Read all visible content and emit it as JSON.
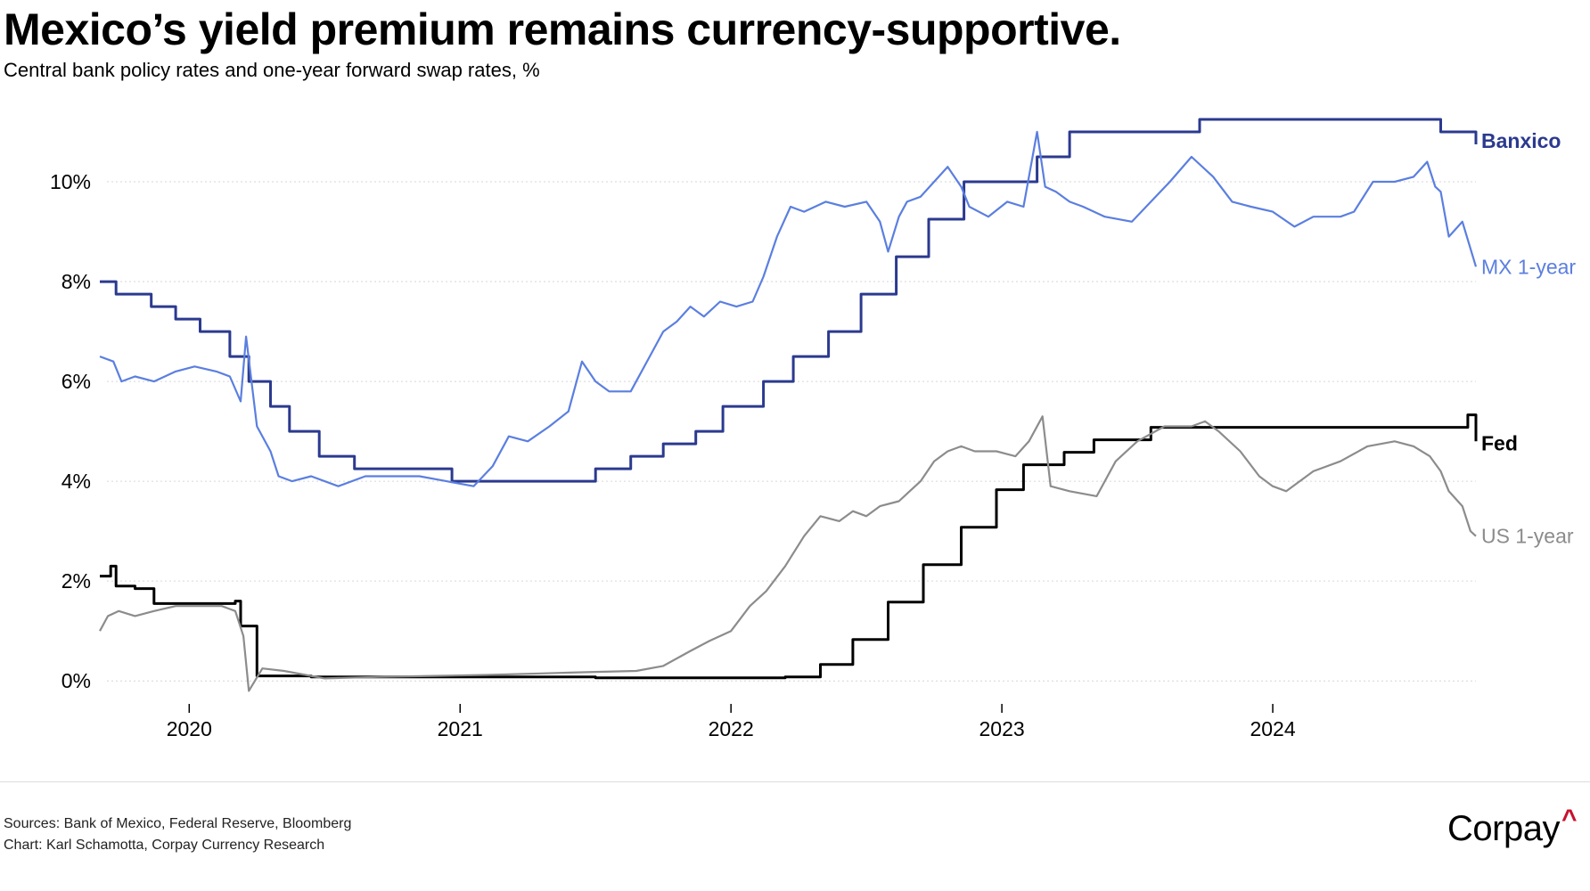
{
  "header": {
    "title": "Mexico’s yield premium remains currency-supportive.",
    "subtitle": "Central bank policy rates and one-year forward swap rates, %"
  },
  "footer": {
    "sources": "Sources: Bank of Mexico, Federal Reserve,  Bloomberg",
    "credit": "Chart: Karl Schamotta, Corpay Currency Research",
    "brand": "Corpay",
    "brand_mark": "^",
    "brand_mark_color": "#c8102e"
  },
  "chart_data": {
    "type": "line",
    "title": "Mexico’s yield premium remains currency-supportive.",
    "subtitle": "Central bank policy rates and one-year forward swap rates, %",
    "xlabel": "",
    "ylabel": "%",
    "xlim": [
      2019.67,
      2024.75
    ],
    "ylim": [
      -0.3,
      11.5
    ],
    "x_ticks": [
      2020,
      2021,
      2022,
      2023,
      2024
    ],
    "x_tick_labels": [
      "2020",
      "2021",
      "2022",
      "2023",
      "2024"
    ],
    "y_ticks": [
      0,
      2,
      4,
      6,
      8,
      10
    ],
    "y_tick_labels": [
      "0%",
      "2%",
      "4%",
      "6%",
      "8%",
      "10%"
    ],
    "grid": "horizontal-dotted",
    "legend": "direct labels at right end of lines",
    "series": [
      {
        "name": "Banxico",
        "label": "Banxico",
        "color": "#2b3a8f",
        "style": "step",
        "x": [
          2019.67,
          2019.73,
          2019.86,
          2019.95,
          2020.04,
          2020.15,
          2020.22,
          2020.3,
          2020.37,
          2020.48,
          2020.61,
          2020.71,
          2020.97,
          2021.12,
          2021.5,
          2021.63,
          2021.75,
          2021.87,
          2021.97,
          2022.12,
          2022.23,
          2022.36,
          2022.48,
          2022.61,
          2022.73,
          2022.86,
          2023.13,
          2023.25,
          2023.73,
          2024.23,
          2024.62,
          2024.75
        ],
        "y": [
          8.0,
          7.75,
          7.5,
          7.25,
          7.0,
          6.5,
          6.0,
          5.5,
          5.0,
          4.5,
          4.25,
          4.25,
          4.0,
          4.0,
          4.25,
          4.5,
          4.75,
          5.0,
          5.5,
          6.0,
          6.5,
          7.0,
          7.75,
          8.5,
          9.25,
          10.0,
          10.5,
          11.0,
          11.25,
          11.25,
          11.0,
          10.75
        ]
      },
      {
        "name": "MX 1-year",
        "label": "MX 1-year",
        "color": "#5b7fe0",
        "style": "line",
        "x": [
          2019.67,
          2019.72,
          2019.75,
          2019.8,
          2019.87,
          2019.95,
          2020.02,
          2020.1,
          2020.15,
          2020.19,
          2020.21,
          2020.25,
          2020.3,
          2020.33,
          2020.38,
          2020.45,
          2020.55,
          2020.65,
          2020.75,
          2020.85,
          2020.95,
          2021.05,
          2021.12,
          2021.18,
          2021.25,
          2021.33,
          2021.4,
          2021.45,
          2021.5,
          2021.55,
          2021.63,
          2021.7,
          2021.75,
          2021.8,
          2021.85,
          2021.9,
          2021.96,
          2022.02,
          2022.08,
          2022.12,
          2022.17,
          2022.22,
          2022.27,
          2022.35,
          2022.42,
          2022.5,
          2022.55,
          2022.58,
          2022.62,
          2022.65,
          2022.7,
          2022.75,
          2022.8,
          2022.85,
          2022.88,
          2022.95,
          2023.02,
          2023.08,
          2023.13,
          2023.16,
          2023.2,
          2023.25,
          2023.3,
          2023.38,
          2023.48,
          2023.55,
          2023.62,
          2023.7,
          2023.78,
          2023.85,
          2023.92,
          2024.0,
          2024.08,
          2024.15,
          2024.25,
          2024.3,
          2024.37,
          2024.45,
          2024.52,
          2024.57,
          2024.6,
          2024.62,
          2024.65,
          2024.7,
          2024.75
        ],
        "y": [
          6.5,
          6.4,
          6.0,
          6.1,
          6.0,
          6.2,
          6.3,
          6.2,
          6.1,
          5.6,
          6.9,
          5.1,
          4.6,
          4.1,
          4.0,
          4.1,
          3.9,
          4.1,
          4.1,
          4.1,
          4.0,
          3.9,
          4.3,
          4.9,
          4.8,
          5.1,
          5.4,
          6.4,
          6.0,
          5.8,
          5.8,
          6.5,
          7.0,
          7.2,
          7.5,
          7.3,
          7.6,
          7.5,
          7.6,
          8.1,
          8.9,
          9.5,
          9.4,
          9.6,
          9.5,
          9.6,
          9.2,
          8.6,
          9.3,
          9.6,
          9.7,
          10.0,
          10.3,
          9.9,
          9.5,
          9.3,
          9.6,
          9.5,
          11.0,
          9.9,
          9.8,
          9.6,
          9.5,
          9.3,
          9.2,
          9.6,
          10.0,
          10.5,
          10.1,
          9.6,
          9.5,
          9.4,
          9.1,
          9.3,
          9.3,
          9.4,
          10.0,
          10.0,
          10.1,
          10.4,
          9.9,
          9.8,
          8.9,
          9.2,
          8.3
        ]
      },
      {
        "name": "Fed",
        "label": "Fed",
        "color": "#000000",
        "style": "step",
        "x": [
          2019.67,
          2019.71,
          2019.73,
          2019.8,
          2019.87,
          2020.17,
          2020.19,
          2020.25,
          2020.45,
          2021.0,
          2021.5,
          2022.2,
          2022.33,
          2022.45,
          2022.58,
          2022.71,
          2022.85,
          2022.98,
          2023.08,
          2023.23,
          2023.34,
          2023.55,
          2024.72,
          2024.75
        ],
        "y": [
          2.1,
          2.3,
          1.9,
          1.85,
          1.55,
          1.6,
          1.1,
          0.1,
          0.08,
          0.08,
          0.06,
          0.08,
          0.33,
          0.83,
          1.58,
          2.33,
          3.08,
          3.83,
          4.33,
          4.58,
          4.83,
          5.08,
          5.33,
          4.8
        ]
      },
      {
        "name": "US 1-year",
        "label": "US 1-year",
        "color": "#8c8c8c",
        "style": "line",
        "x": [
          2019.67,
          2019.7,
          2019.74,
          2019.8,
          2019.87,
          2019.95,
          2020.05,
          2020.12,
          2020.17,
          2020.2,
          2020.22,
          2020.27,
          2020.35,
          2020.5,
          2020.7,
          2020.9,
          2021.1,
          2021.3,
          2021.5,
          2021.65,
          2021.75,
          2021.85,
          2021.92,
          2022.0,
          2022.07,
          2022.13,
          2022.2,
          2022.27,
          2022.33,
          2022.4,
          2022.45,
          2022.5,
          2022.55,
          2022.62,
          2022.7,
          2022.75,
          2022.8,
          2022.85,
          2022.9,
          2022.98,
          2023.05,
          2023.1,
          2023.15,
          2023.18,
          2023.25,
          2023.35,
          2023.42,
          2023.5,
          2023.6,
          2023.7,
          2023.75,
          2023.8,
          2023.88,
          2023.95,
          2024.0,
          2024.05,
          2024.15,
          2024.25,
          2024.35,
          2024.45,
          2024.52,
          2024.58,
          2024.62,
          2024.65,
          2024.7,
          2024.73,
          2024.75
        ],
        "y": [
          1.0,
          1.3,
          1.4,
          1.3,
          1.4,
          1.5,
          1.5,
          1.5,
          1.4,
          0.9,
          -0.2,
          0.25,
          0.2,
          0.05,
          0.08,
          0.1,
          0.12,
          0.15,
          0.18,
          0.2,
          0.3,
          0.6,
          0.8,
          1.0,
          1.5,
          1.8,
          2.3,
          2.9,
          3.3,
          3.2,
          3.4,
          3.3,
          3.5,
          3.6,
          4.0,
          4.4,
          4.6,
          4.7,
          4.6,
          4.6,
          4.5,
          4.8,
          5.3,
          3.9,
          3.8,
          3.7,
          4.4,
          4.8,
          5.1,
          5.1,
          5.2,
          5.0,
          4.6,
          4.1,
          3.9,
          3.8,
          4.2,
          4.4,
          4.7,
          4.8,
          4.7,
          4.5,
          4.2,
          3.8,
          3.5,
          3.0,
          2.9
        ]
      }
    ]
  }
}
